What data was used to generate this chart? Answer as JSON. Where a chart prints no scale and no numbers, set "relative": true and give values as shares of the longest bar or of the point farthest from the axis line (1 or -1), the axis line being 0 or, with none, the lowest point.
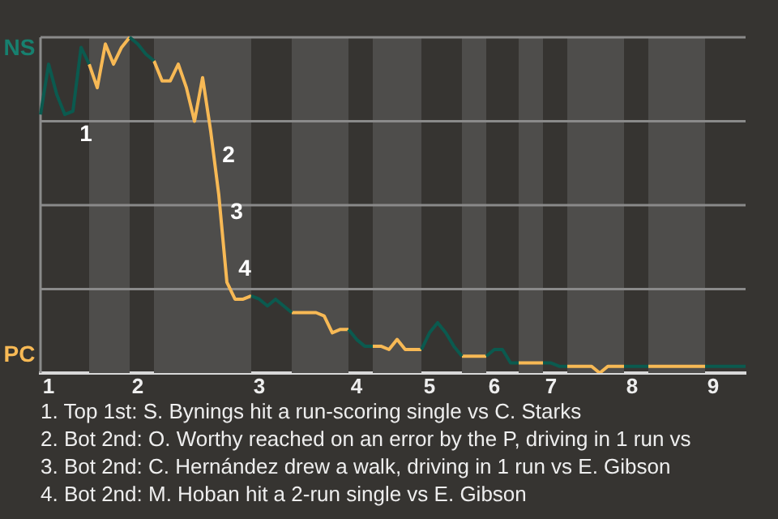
{
  "chart_data": {
    "type": "line",
    "relative": true,
    "categories": [
      null,
      "1",
      null,
      null,
      null,
      null,
      null,
      null,
      null,
      null,
      null,
      null,
      "2",
      null,
      null,
      null,
      null,
      null,
      null,
      null,
      null,
      null,
      null,
      null,
      null,
      null,
      null,
      "3",
      null,
      null,
      null,
      null,
      null,
      null,
      null,
      null,
      null,
      null,
      null,
      "4",
      null,
      null,
      null,
      null,
      null,
      null,
      null,
      null,
      "5",
      null,
      null,
      null,
      null,
      null,
      null,
      null,
      "6",
      null,
      null,
      null,
      null,
      null,
      null,
      "7",
      null,
      null,
      null,
      null,
      null,
      null,
      null,
      null,
      null,
      "8",
      null,
      null,
      null,
      null,
      null,
      null,
      null,
      null,
      null,
      "9",
      null,
      null,
      null,
      null
    ],
    "grid": "y",
    "marker": "none",
    "line_style": "solid",
    "series": [
      {
        "color": "#0b5a4f",
        "values": [
          0.77,
          0.92,
          0.83,
          0.77,
          0.78,
          0.97,
          0.92,
          null,
          null,
          null,
          null,
          1,
          0.98,
          0.95,
          0.93,
          null,
          null,
          null,
          null,
          null,
          null,
          null,
          null,
          null,
          null,
          null,
          0.23,
          0.22,
          0.2,
          0.22,
          0.2,
          0.18,
          null,
          null,
          null,
          null,
          null,
          null,
          0.13,
          0.1,
          0.08,
          0.08,
          null,
          null,
          null,
          null,
          null,
          0.07,
          0.12,
          0.15,
          0.12,
          0.08,
          0.05,
          null,
          null,
          0.05,
          0.07,
          0.07,
          0.03,
          0.03,
          null,
          null,
          0.03,
          0.03,
          0.02,
          0.02,
          null,
          null,
          null,
          null,
          null,
          null,
          0.02,
          0.02,
          0.02,
          0.02,
          null,
          null,
          null,
          null,
          null,
          null,
          0.02,
          0.02,
          0.02,
          0.02,
          0.02,
          0.02
        ]
      },
      {
        "color": "#f7b955",
        "values": [
          null,
          null,
          null,
          null,
          null,
          null,
          0.92,
          0.85,
          0.98,
          0.92,
          0.97,
          1,
          null,
          null,
          0.93,
          0.87,
          0.87,
          0.92,
          0.85,
          0.75,
          0.88,
          0.72,
          0.53,
          0.27,
          0.22,
          0.22,
          0.23,
          null,
          null,
          null,
          null,
          0.18,
          0.18,
          0.18,
          0.18,
          0.17,
          0.12,
          0.13,
          0.13,
          null,
          null,
          0.08,
          0.08,
          0.07,
          0.1,
          0.07,
          0.07,
          0.07,
          null,
          null,
          null,
          null,
          0.05,
          0.05,
          0.05,
          0.05,
          null,
          null,
          null,
          0.03,
          0.03,
          0.03,
          0.03,
          null,
          null,
          0.02,
          0.02,
          0.02,
          0.02,
          0,
          0.02,
          0.02,
          0.02,
          null,
          null,
          0.02,
          0.02,
          0.02,
          0.02,
          0.02,
          0.02,
          0.02,
          0.02,
          null,
          null,
          null,
          null,
          null
        ]
      }
    ],
    "annotations": [
      "NS",
      "PC",
      "1",
      "2",
      "3",
      "4",
      "1. Top 1st: S. Bynings hit a run-scoring single vs C. Starks",
      "2. Bot 2nd: O. Worthy reached on an error by the P, driving in 1 run vs",
      "3. Bot 2nd: C. Hernández drew a walk, driving in 1 run vs E. Gibson",
      "4. Bot 2nd: M. Hoban hit a 2-run single vs E. Gibson"
    ]
  }
}
